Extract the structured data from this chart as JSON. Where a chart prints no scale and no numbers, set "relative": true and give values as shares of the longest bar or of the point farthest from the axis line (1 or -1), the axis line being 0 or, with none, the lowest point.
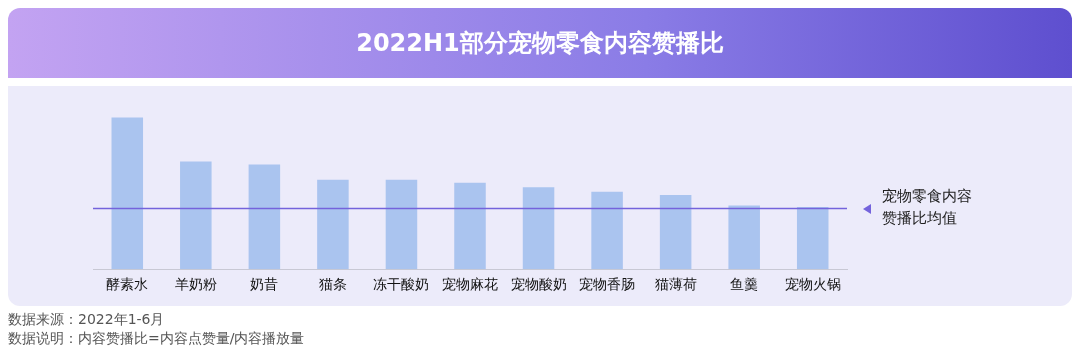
{
  "chart_data": {
    "type": "bar",
    "title": "2022H1部分宠物零食内容赞播比",
    "relative": true,
    "grid": false,
    "legend": false,
    "categories": [
      "酵素水",
      "羊奶粉",
      "奶昔",
      "猫条",
      "冻干酸奶",
      "宠物麻花",
      "宠物酸奶",
      "宠物香肠",
      "猫薄荷",
      "鱼羹",
      "宠物火锅"
    ],
    "series": [
      {
        "color": "#aac4ef",
        "values": [
          1,
          0.71,
          0.69,
          0.59,
          0.59,
          0.57,
          0.54,
          0.51,
          0.49,
          0.42,
          0.41
        ]
      }
    ],
    "ref_lines": [
      {
        "axis": "y",
        "value": 0.4,
        "label": "宠物零食内容赞播比均值",
        "color": "#7463dc"
      }
    ],
    "annotations": [
      "数据来源：2022年1-6月",
      "数据说明：内容赞播比=内容点赞量/内容播放量"
    ]
  }
}
